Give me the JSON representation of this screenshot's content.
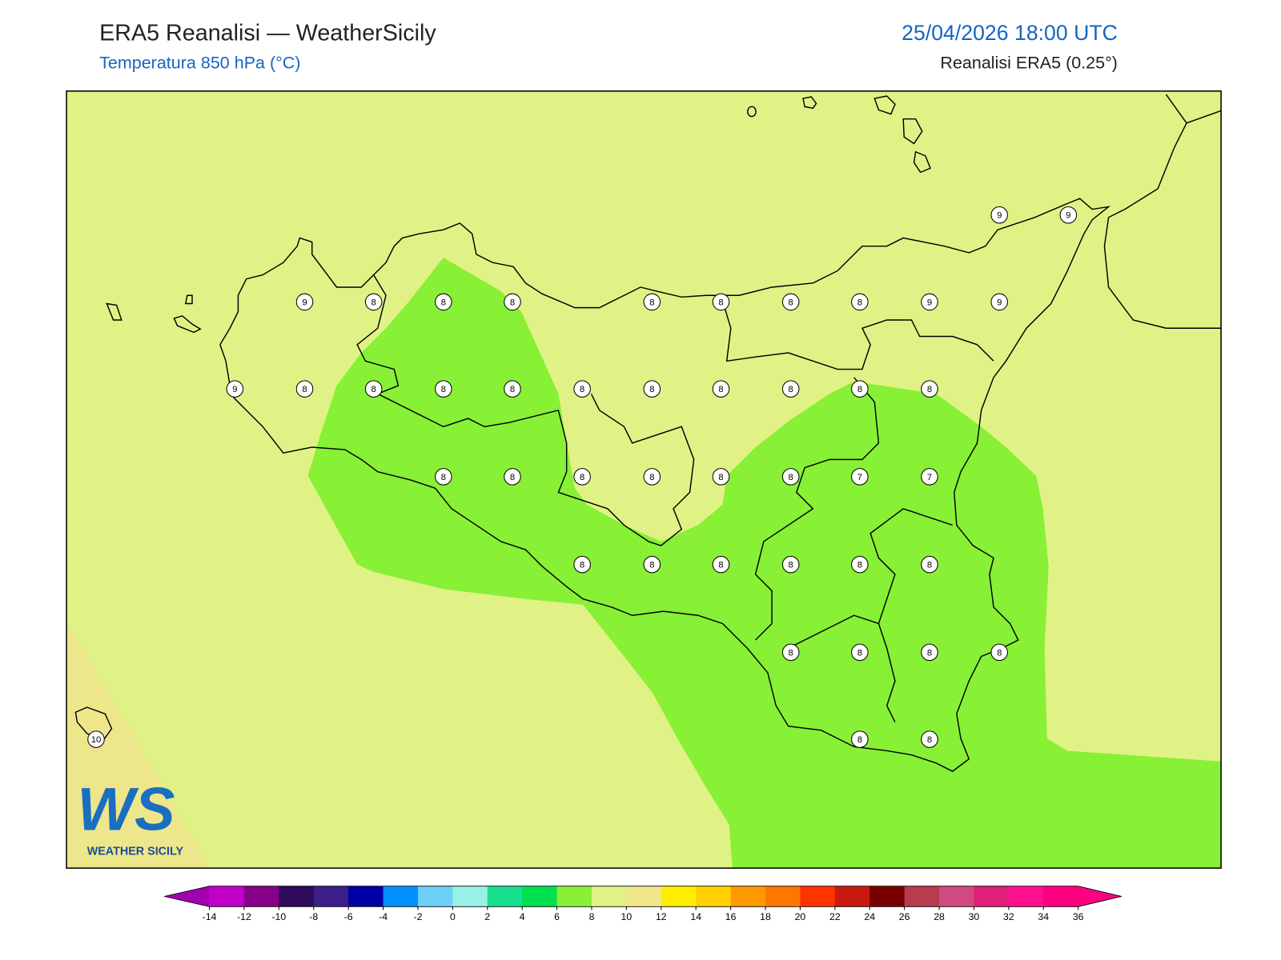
{
  "header": {
    "title": "ERA5 Reanalisi — WeatherSicily",
    "subtitle": "Temperatura 850 hPa (°C)",
    "datetime": "25/04/2026 18:00 UTC",
    "source": "Reanalisi ERA5 (0.25°)"
  },
  "map": {
    "stations": [
      9,
      9,
      9,
      8,
      8,
      8,
      8,
      8,
      8,
      8,
      9,
      9,
      9,
      8,
      8,
      8,
      8,
      8,
      8,
      8,
      8,
      8,
      8,
      8,
      8,
      8,
      8,
      8,
      8,
      7,
      7,
      8,
      8,
      8,
      8,
      8,
      8,
      8,
      8,
      8,
      8,
      8,
      8,
      10
    ]
  },
  "colorbar": {
    "ticks": [
      -14,
      -12,
      -10,
      -8,
      -6,
      -4,
      -2,
      0,
      2,
      4,
      6,
      8,
      10,
      12,
      14,
      16,
      18,
      20,
      22,
      24,
      26,
      28,
      30,
      32,
      34,
      36
    ],
    "colors": [
      "#a000b0",
      "#c000c8",
      "#880088",
      "#2e0a5a",
      "#3c1e88",
      "#0000a8",
      "#0090ff",
      "#6cd0f8",
      "#98f0e6",
      "#18e090",
      "#00e050",
      "#88f035",
      "#e0f285",
      "#f0e68c",
      "#ffee00",
      "#ffd000",
      "#ff9900",
      "#ff7700",
      "#ff3300",
      "#c81a10",
      "#780000",
      "#b83c50",
      "#d04a80",
      "#e0207a",
      "#ff1090",
      "#ff0080",
      "#ff0080"
    ]
  },
  "logo": {
    "mark": "WS",
    "name": "WEATHER SICILY"
  }
}
